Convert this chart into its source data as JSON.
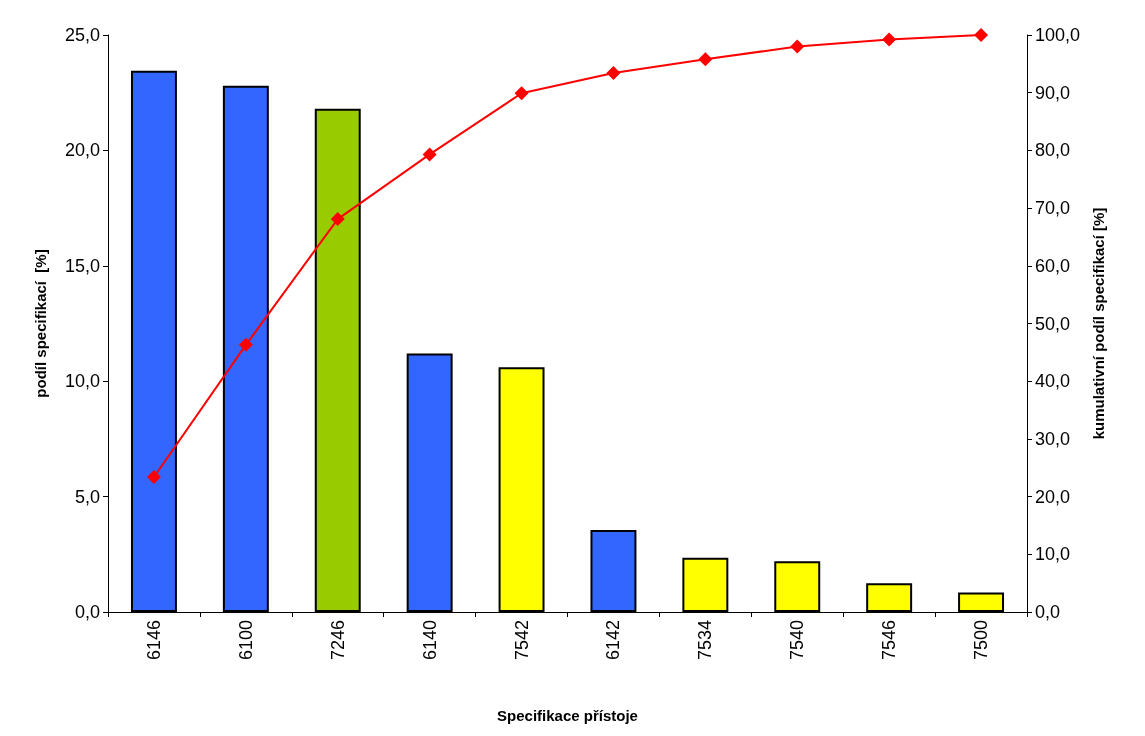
{
  "chart_data": {
    "type": "bar",
    "xlabel": "Specifikace přístoje",
    "ylabel": "podíl specifikací  [%]",
    "y2label": "kumulativní podíl specifikací [%]",
    "categories": [
      "6146",
      "6100",
      "7246",
      "6140",
      "7542",
      "6142",
      "7534",
      "7540",
      "7546",
      "7500"
    ],
    "series": [
      {
        "values": [
          23.45,
          22.8,
          21.8,
          11.2,
          10.6,
          3.55,
          2.35,
          2.2,
          1.25,
          0.85
        ],
        "colors": [
          "#3366ff",
          "#3366ff",
          "#99cc00",
          "#3366ff",
          "#ffff00",
          "#3366ff",
          "#ffff00",
          "#ffff00",
          "#ffff00",
          "#ffff00"
        ]
      },
      {
        "type": "line",
        "axis": "y2",
        "color": "#ff0000",
        "marker": "diamond",
        "values": [
          23.4,
          46.3,
          68.1,
          79.3,
          89.9,
          93.4,
          95.8,
          98.0,
          99.2,
          100.0
        ]
      }
    ],
    "ylim": [
      0,
      25
    ],
    "yticks": [
      {
        "value": 0,
        "label": "0,0"
      },
      {
        "value": 5,
        "label": "5,0"
      },
      {
        "value": 10,
        "label": "10,0"
      },
      {
        "value": 15,
        "label": "15,0"
      },
      {
        "value": 20,
        "label": "20,0"
      },
      {
        "value": 25,
        "label": "25,0"
      }
    ],
    "y2lim": [
      0,
      100
    ],
    "y2ticks": [
      {
        "value": 0,
        "label": "0,0"
      },
      {
        "value": 10,
        "label": "10,0"
      },
      {
        "value": 20,
        "label": "20,0"
      },
      {
        "value": 30,
        "label": "30,0"
      },
      {
        "value": 40,
        "label": "40,0"
      },
      {
        "value": 50,
        "label": "50,0"
      },
      {
        "value": 60,
        "label": "60,0"
      },
      {
        "value": 70,
        "label": "70,0"
      },
      {
        "value": 80,
        "label": "80,0"
      },
      {
        "value": 90,
        "label": "90,0"
      },
      {
        "value": 100,
        "label": "100,0"
      }
    ],
    "grid": false
  }
}
